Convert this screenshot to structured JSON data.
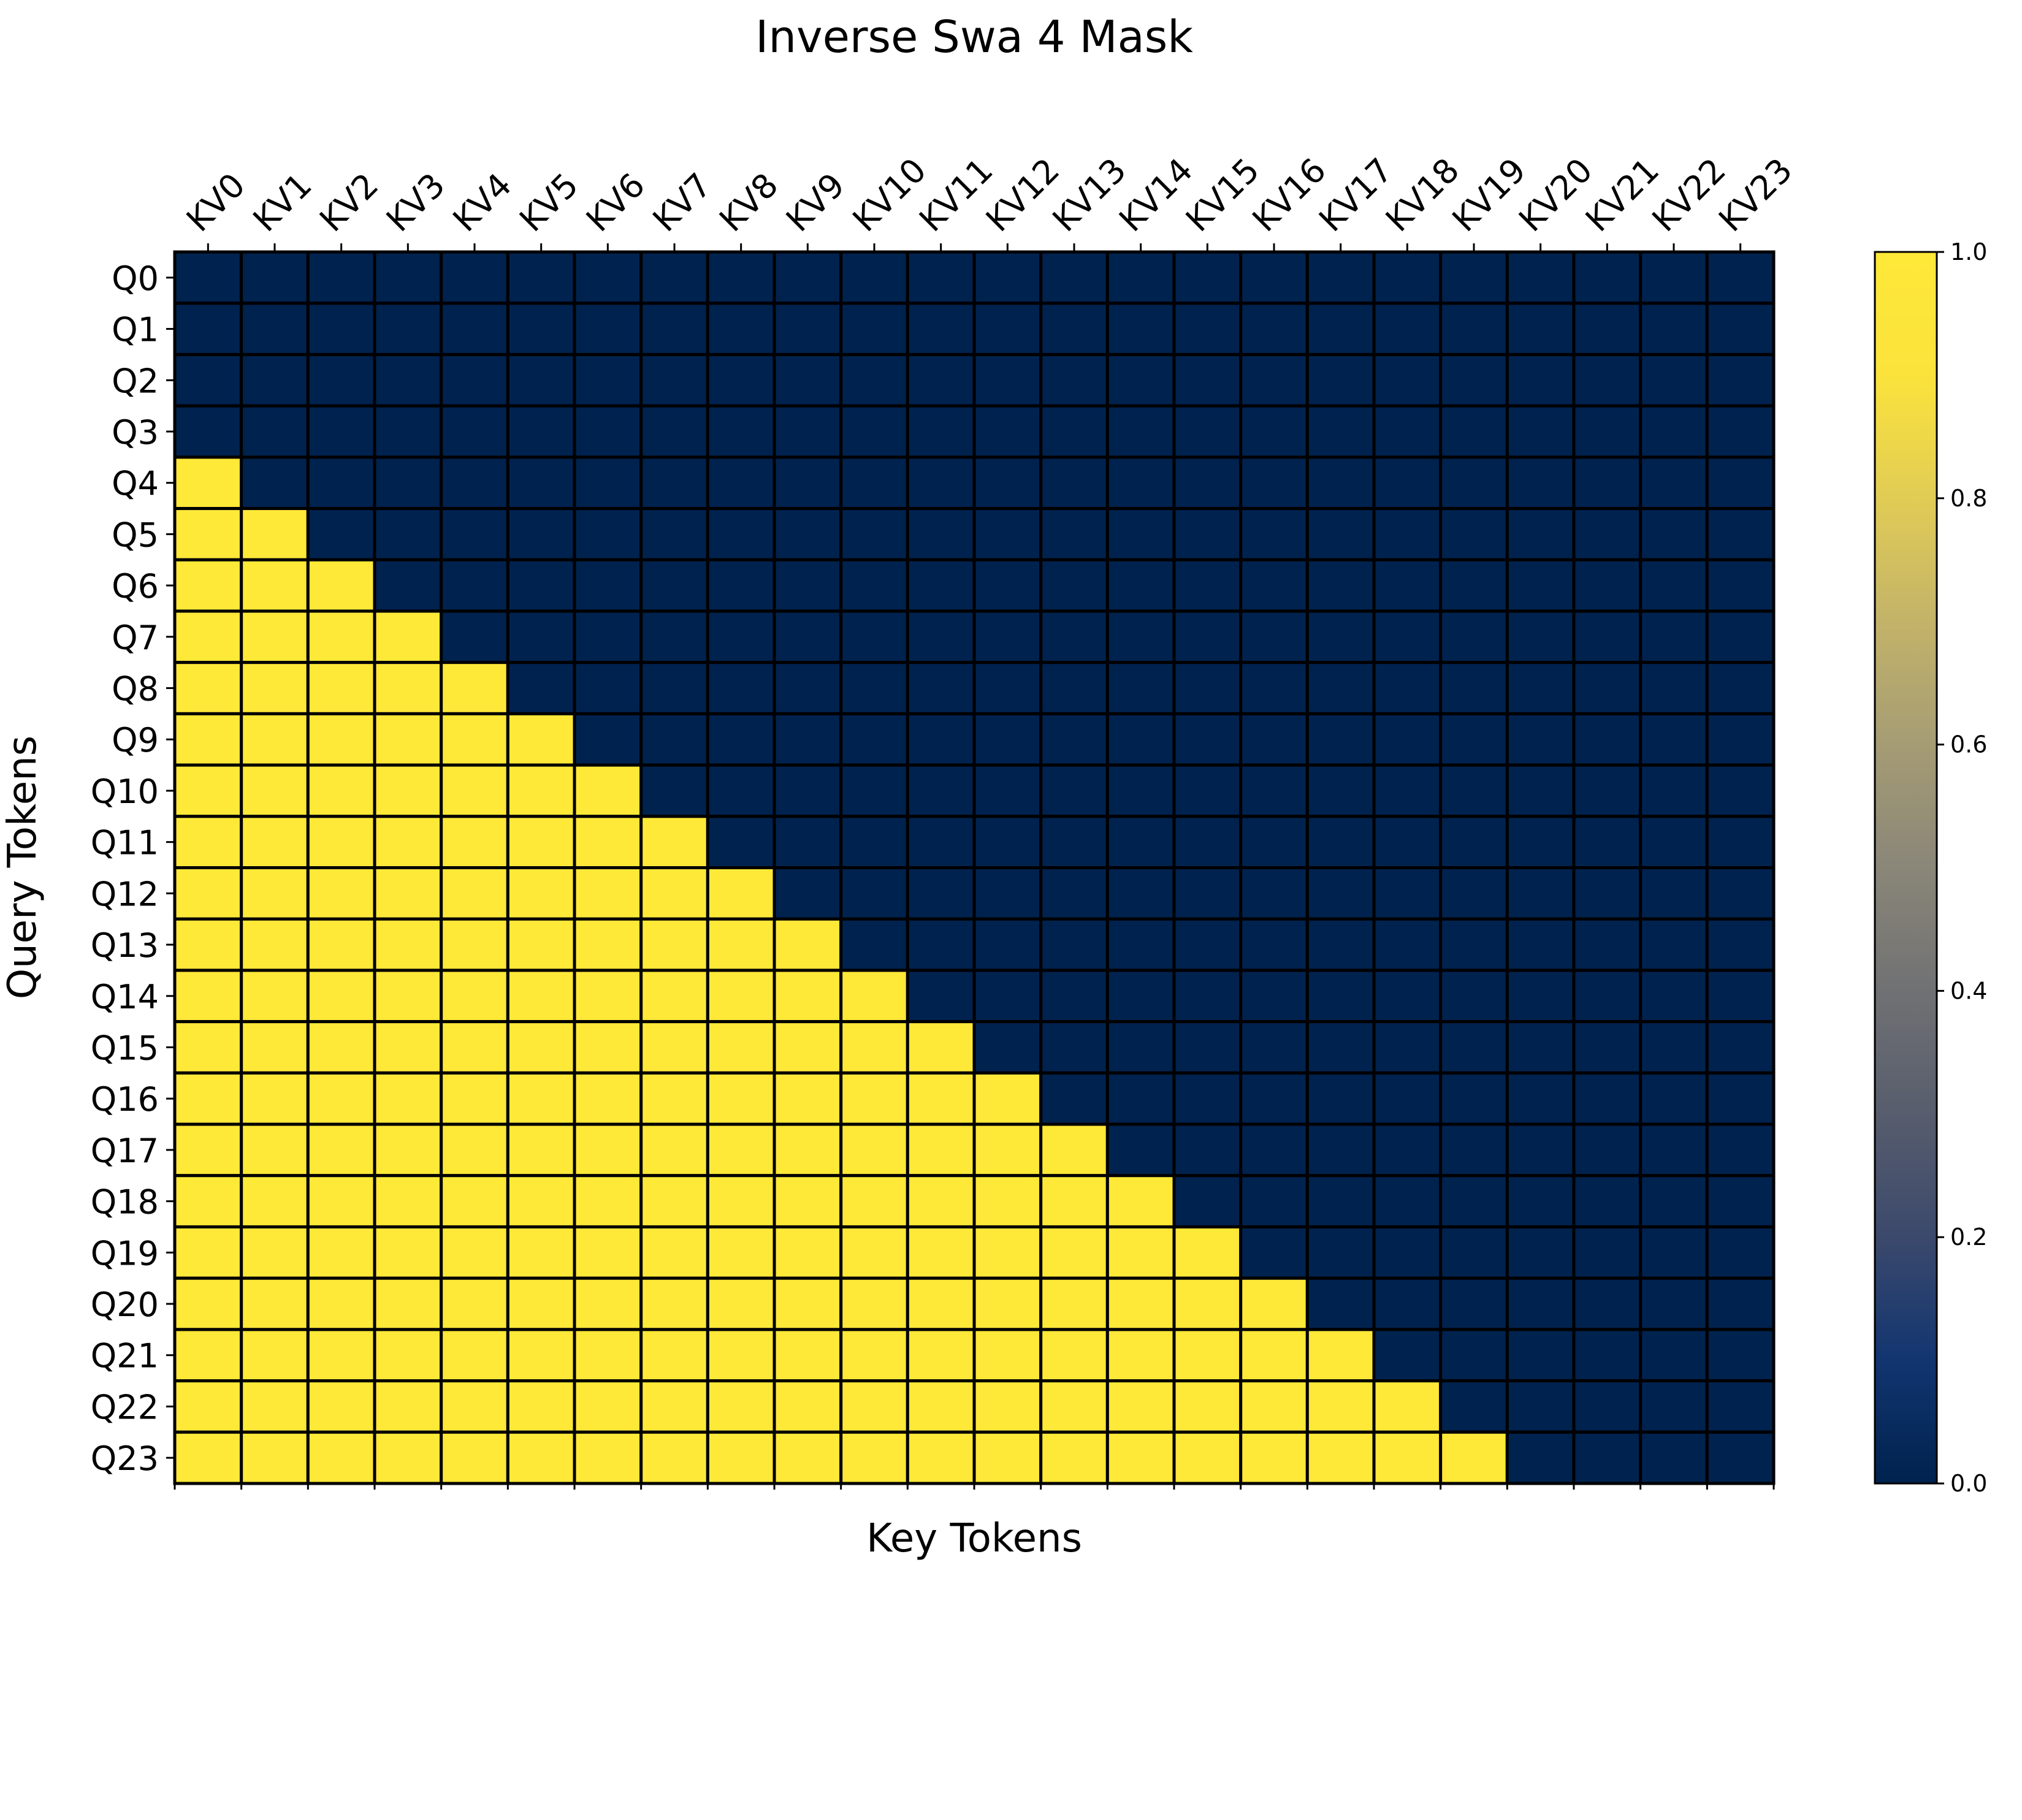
{
  "chart_data": {
    "type": "heatmap",
    "title": "Inverse Swa 4 Mask",
    "xlabel": "Key Tokens",
    "ylabel": "Query Tokens",
    "x_categories": [
      "KV0",
      "KV1",
      "KV2",
      "KV3",
      "KV4",
      "KV5",
      "KV6",
      "KV7",
      "KV8",
      "KV9",
      "KV10",
      "KV11",
      "KV12",
      "KV13",
      "KV14",
      "KV15",
      "KV16",
      "KV17",
      "KV18",
      "KV19",
      "KV20",
      "KV21",
      "KV22",
      "KV23"
    ],
    "y_categories": [
      "Q0",
      "Q1",
      "Q2",
      "Q3",
      "Q4",
      "Q5",
      "Q6",
      "Q7",
      "Q8",
      "Q9",
      "Q10",
      "Q11",
      "Q12",
      "Q13",
      "Q14",
      "Q15",
      "Q16",
      "Q17",
      "Q18",
      "Q19",
      "Q20",
      "Q21",
      "Q22",
      "Q23"
    ],
    "values": [
      [
        0,
        0,
        0,
        0,
        0,
        0,
        0,
        0,
        0,
        0,
        0,
        0,
        0,
        0,
        0,
        0,
        0,
        0,
        0,
        0,
        0,
        0,
        0,
        0
      ],
      [
        0,
        0,
        0,
        0,
        0,
        0,
        0,
        0,
        0,
        0,
        0,
        0,
        0,
        0,
        0,
        0,
        0,
        0,
        0,
        0,
        0,
        0,
        0,
        0
      ],
      [
        0,
        0,
        0,
        0,
        0,
        0,
        0,
        0,
        0,
        0,
        0,
        0,
        0,
        0,
        0,
        0,
        0,
        0,
        0,
        0,
        0,
        0,
        0,
        0
      ],
      [
        0,
        0,
        0,
        0,
        0,
        0,
        0,
        0,
        0,
        0,
        0,
        0,
        0,
        0,
        0,
        0,
        0,
        0,
        0,
        0,
        0,
        0,
        0,
        0
      ],
      [
        1,
        0,
        0,
        0,
        0,
        0,
        0,
        0,
        0,
        0,
        0,
        0,
        0,
        0,
        0,
        0,
        0,
        0,
        0,
        0,
        0,
        0,
        0,
        0
      ],
      [
        1,
        1,
        0,
        0,
        0,
        0,
        0,
        0,
        0,
        0,
        0,
        0,
        0,
        0,
        0,
        0,
        0,
        0,
        0,
        0,
        0,
        0,
        0,
        0
      ],
      [
        1,
        1,
        1,
        0,
        0,
        0,
        0,
        0,
        0,
        0,
        0,
        0,
        0,
        0,
        0,
        0,
        0,
        0,
        0,
        0,
        0,
        0,
        0,
        0
      ],
      [
        1,
        1,
        1,
        1,
        0,
        0,
        0,
        0,
        0,
        0,
        0,
        0,
        0,
        0,
        0,
        0,
        0,
        0,
        0,
        0,
        0,
        0,
        0,
        0
      ],
      [
        1,
        1,
        1,
        1,
        1,
        0,
        0,
        0,
        0,
        0,
        0,
        0,
        0,
        0,
        0,
        0,
        0,
        0,
        0,
        0,
        0,
        0,
        0,
        0
      ],
      [
        1,
        1,
        1,
        1,
        1,
        1,
        0,
        0,
        0,
        0,
        0,
        0,
        0,
        0,
        0,
        0,
        0,
        0,
        0,
        0,
        0,
        0,
        0,
        0
      ],
      [
        1,
        1,
        1,
        1,
        1,
        1,
        1,
        0,
        0,
        0,
        0,
        0,
        0,
        0,
        0,
        0,
        0,
        0,
        0,
        0,
        0,
        0,
        0,
        0
      ],
      [
        1,
        1,
        1,
        1,
        1,
        1,
        1,
        1,
        0,
        0,
        0,
        0,
        0,
        0,
        0,
        0,
        0,
        0,
        0,
        0,
        0,
        0,
        0,
        0
      ],
      [
        1,
        1,
        1,
        1,
        1,
        1,
        1,
        1,
        1,
        0,
        0,
        0,
        0,
        0,
        0,
        0,
        0,
        0,
        0,
        0,
        0,
        0,
        0,
        0
      ],
      [
        1,
        1,
        1,
        1,
        1,
        1,
        1,
        1,
        1,
        1,
        0,
        0,
        0,
        0,
        0,
        0,
        0,
        0,
        0,
        0,
        0,
        0,
        0,
        0
      ],
      [
        1,
        1,
        1,
        1,
        1,
        1,
        1,
        1,
        1,
        1,
        1,
        0,
        0,
        0,
        0,
        0,
        0,
        0,
        0,
        0,
        0,
        0,
        0,
        0
      ],
      [
        1,
        1,
        1,
        1,
        1,
        1,
        1,
        1,
        1,
        1,
        1,
        1,
        0,
        0,
        0,
        0,
        0,
        0,
        0,
        0,
        0,
        0,
        0,
        0
      ],
      [
        1,
        1,
        1,
        1,
        1,
        1,
        1,
        1,
        1,
        1,
        1,
        1,
        1,
        0,
        0,
        0,
        0,
        0,
        0,
        0,
        0,
        0,
        0,
        0
      ],
      [
        1,
        1,
        1,
        1,
        1,
        1,
        1,
        1,
        1,
        1,
        1,
        1,
        1,
        1,
        0,
        0,
        0,
        0,
        0,
        0,
        0,
        0,
        0,
        0
      ],
      [
        1,
        1,
        1,
        1,
        1,
        1,
        1,
        1,
        1,
        1,
        1,
        1,
        1,
        1,
        1,
        0,
        0,
        0,
        0,
        0,
        0,
        0,
        0,
        0
      ],
      [
        1,
        1,
        1,
        1,
        1,
        1,
        1,
        1,
        1,
        1,
        1,
        1,
        1,
        1,
        1,
        1,
        0,
        0,
        0,
        0,
        0,
        0,
        0,
        0
      ],
      [
        1,
        1,
        1,
        1,
        1,
        1,
        1,
        1,
        1,
        1,
        1,
        1,
        1,
        1,
        1,
        1,
        1,
        0,
        0,
        0,
        0,
        0,
        0,
        0
      ],
      [
        1,
        1,
        1,
        1,
        1,
        1,
        1,
        1,
        1,
        1,
        1,
        1,
        1,
        1,
        1,
        1,
        1,
        1,
        0,
        0,
        0,
        0,
        0,
        0
      ],
      [
        1,
        1,
        1,
        1,
        1,
        1,
        1,
        1,
        1,
        1,
        1,
        1,
        1,
        1,
        1,
        1,
        1,
        1,
        1,
        0,
        0,
        0,
        0,
        0
      ],
      [
        1,
        1,
        1,
        1,
        1,
        1,
        1,
        1,
        1,
        1,
        1,
        1,
        1,
        1,
        1,
        1,
        1,
        1,
        1,
        1,
        0,
        0,
        0,
        0
      ]
    ],
    "colormap": "cividis",
    "colors": {
      "low": "#00224e",
      "high": "#fee838"
    },
    "colorbar": {
      "range": [
        0.0,
        1.0
      ],
      "ticks": [
        "0.0",
        "0.2",
        "0.4",
        "0.6",
        "0.8",
        "1.0"
      ]
    },
    "cell_edge_color": "#000000",
    "x_tick_position": "top",
    "x_tick_rotation": 45
  }
}
